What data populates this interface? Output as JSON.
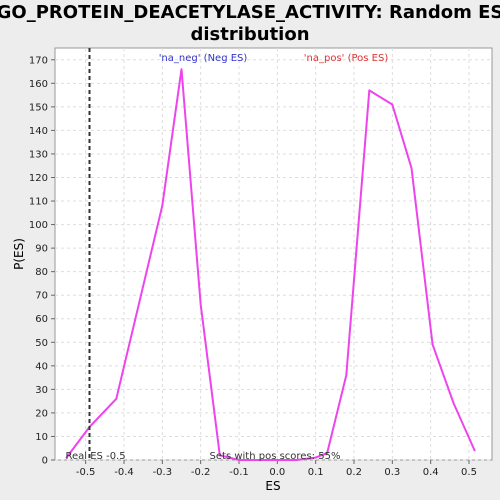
{
  "chart_data": {
    "type": "line",
    "title_lines": [
      "GO_PROTEIN_DEACETYLASE_ACTIVITY: Random ES",
      "distribution"
    ],
    "xlabel": "ES",
    "ylabel": "P(ES)",
    "xlim": [
      -0.58,
      0.56
    ],
    "ylim": [
      0,
      175
    ],
    "x_ticks": [
      -0.5,
      -0.4,
      -0.3,
      -0.2,
      -0.1,
      0.0,
      0.1,
      0.2,
      0.3,
      0.4,
      0.5
    ],
    "x_tick_labels": [
      "-0.5",
      "-0.4",
      "-0.3",
      "-0.2",
      "-0.1",
      "0.0",
      "0.1",
      "0.2",
      "0.3",
      "0.4",
      "0.5"
    ],
    "y_ticks": [
      0,
      10,
      20,
      30,
      40,
      50,
      60,
      70,
      80,
      90,
      100,
      110,
      120,
      130,
      140,
      150,
      160,
      170
    ],
    "grid": true,
    "series": [
      {
        "color": "#ee44ee",
        "x": [
          -0.55,
          -0.49,
          -0.42,
          -0.36,
          -0.3,
          -0.25,
          -0.2,
          -0.15,
          -0.1,
          -0.05,
          0.0,
          0.05,
          0.1,
          0.13,
          0.18,
          0.24,
          0.3,
          0.35,
          0.405,
          0.46,
          0.515
        ],
        "y": [
          1,
          14,
          26,
          67,
          108,
          166,
          66,
          2,
          0,
          0,
          0,
          0,
          1,
          3,
          36,
          157,
          151,
          124,
          49,
          24,
          4
        ]
      }
    ],
    "real_es": {
      "x": -0.49,
      "label": "Real ES -0.5"
    },
    "annotations": {
      "neg_label": "'na_neg' (Neg ES)",
      "pos_label": "'na_pos' (Pos ES)",
      "pos_scores": "Sets with pos scores: 55%",
      "neg_color": "#3333cc",
      "pos_color": "#dd3333"
    }
  }
}
